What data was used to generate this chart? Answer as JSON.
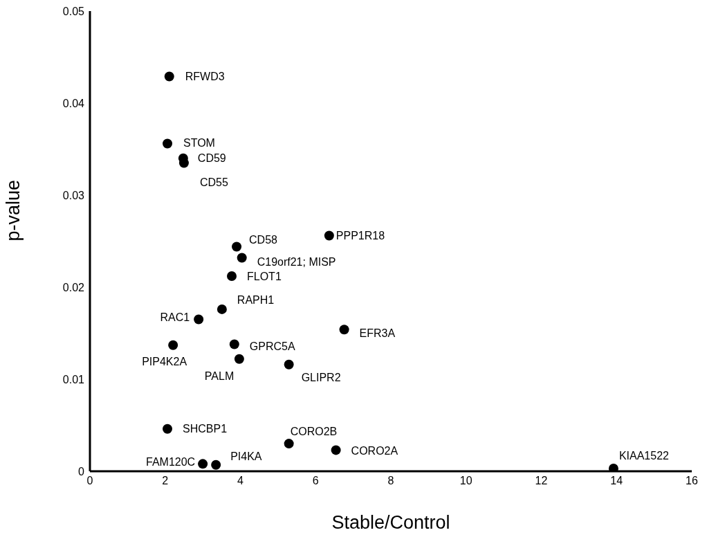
{
  "chart_data": {
    "type": "scatter",
    "xlabel": "Stable/Control",
    "ylabel": "p-value",
    "xlim": [
      0,
      16
    ],
    "xticks": [
      0,
      2,
      4,
      6,
      8,
      10,
      12,
      14,
      16
    ],
    "ylim": [
      0,
      0.05
    ],
    "yticks": [
      0,
      0.01,
      0.02,
      0.03,
      0.04,
      0.05
    ],
    "marker": "circle",
    "series": [
      {
        "color": "#000000",
        "x": [
          2.11,
          2.06,
          2.48,
          2.5,
          3.9,
          6.36,
          4.04,
          3.77,
          3.51,
          2.89,
          6.76,
          2.21,
          3.84,
          3.97,
          5.29,
          2.06,
          5.29,
          6.54,
          3.0,
          3.35,
          13.92
        ],
        "values": [
          0.0429,
          0.0356,
          0.034,
          0.0335,
          0.0244,
          0.0256,
          0.0232,
          0.0212,
          0.0176,
          0.0165,
          0.0154,
          0.0137,
          0.0138,
          0.0122,
          0.0116,
          0.0046,
          0.003,
          0.0023,
          0.0008,
          0.0007,
          0.0003
        ]
      }
    ],
    "annotations": [
      {
        "text": "RFWD3",
        "x": 2.11,
        "y": 0.0429
      },
      {
        "text": "STOM",
        "x": 2.06,
        "y": 0.0356
      },
      {
        "text": "CD59",
        "x": 2.48,
        "y": 0.034
      },
      {
        "text": "CD55",
        "x": 2.5,
        "y": 0.0335
      },
      {
        "text": "CD58",
        "x": 3.9,
        "y": 0.0244
      },
      {
        "text": "PPP1R18",
        "x": 6.36,
        "y": 0.0256
      },
      {
        "text": "C19orf21; MISP",
        "x": 4.04,
        "y": 0.0232
      },
      {
        "text": "FLOT1",
        "x": 3.77,
        "y": 0.0212
      },
      {
        "text": "RAPH1",
        "x": 3.51,
        "y": 0.0176
      },
      {
        "text": "RAC1",
        "x": 2.89,
        "y": 0.0165
      },
      {
        "text": "EFR3A",
        "x": 6.76,
        "y": 0.0154
      },
      {
        "text": "PIP4K2A",
        "x": 2.21,
        "y": 0.0137
      },
      {
        "text": "GPRC5A",
        "x": 3.84,
        "y": 0.0138
      },
      {
        "text": "PALM",
        "x": 3.97,
        "y": 0.0122
      },
      {
        "text": "GLIPR2",
        "x": 5.29,
        "y": 0.0116
      },
      {
        "text": "SHCBP1",
        "x": 2.06,
        "y": 0.0046
      },
      {
        "text": "CORO2B",
        "x": 5.29,
        "y": 0.003
      },
      {
        "text": "CORO2A",
        "x": 6.54,
        "y": 0.0023
      },
      {
        "text": "FAM120C",
        "x": 3.0,
        "y": 0.0008
      },
      {
        "text": "PI4KA",
        "x": 3.35,
        "y": 0.0007
      },
      {
        "text": "KIAA1522",
        "x": 13.92,
        "y": 0.0003
      }
    ]
  }
}
